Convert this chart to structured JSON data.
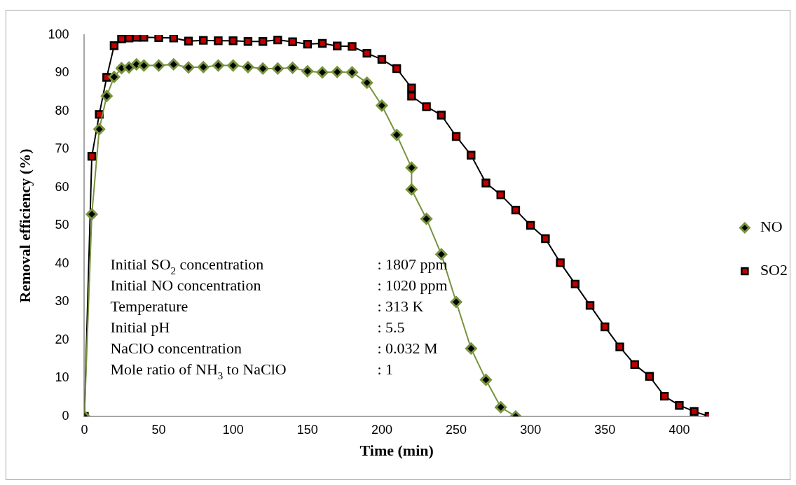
{
  "chart_data": {
    "type": "line",
    "xlabel": "Time (min)",
    "ylabel": "Removal efficiency (%)",
    "xlim": [
      0,
      420
    ],
    "xticks": [
      0,
      50,
      100,
      150,
      200,
      250,
      300,
      350,
      400
    ],
    "ylim": [
      0,
      100
    ],
    "yticks": [
      0,
      10,
      20,
      30,
      40,
      50,
      60,
      70,
      80,
      90,
      100
    ],
    "grid": false,
    "legend": "right",
    "line_style": "solid",
    "series": [
      {
        "name": "NO",
        "color": "#77933c",
        "marker": "diamond",
        "x": [
          0,
          5,
          10,
          15,
          20,
          25,
          30,
          35,
          40,
          50,
          60,
          70,
          80,
          90,
          100,
          110,
          120,
          130,
          140,
          150,
          160,
          170,
          180,
          190,
          200,
          210,
          220,
          220,
          230,
          240,
          250,
          260,
          270,
          280,
          290
        ],
        "values": [
          0,
          53,
          75.3,
          84,
          89,
          91.3,
          91.5,
          92.3,
          92,
          92,
          92.3,
          91.5,
          91.6,
          92,
          92,
          91.6,
          91.2,
          91.2,
          91.4,
          90.5,
          90.2,
          90.3,
          90.2,
          87.5,
          81.5,
          73.8,
          65.2,
          59.5,
          51.8,
          42.5,
          30,
          17.8,
          9.6,
          2.4,
          0
        ]
      },
      {
        "name": "SO2",
        "color": "#c00000",
        "marker": "square",
        "x": [
          0,
          5,
          10,
          15,
          20,
          25,
          30,
          35,
          40,
          50,
          60,
          70,
          80,
          90,
          100,
          110,
          120,
          130,
          140,
          150,
          160,
          170,
          180,
          190,
          200,
          210,
          220,
          220,
          230,
          240,
          250,
          260,
          270,
          280,
          290,
          300,
          310,
          320,
          330,
          340,
          350,
          360,
          370,
          380,
          390,
          400,
          410,
          420
        ],
        "values": [
          0,
          68.2,
          79.2,
          88.9,
          97.2,
          99,
          99.2,
          99.4,
          99.4,
          99.3,
          99.2,
          98.4,
          98.6,
          98.5,
          98.5,
          98.3,
          98.3,
          98.7,
          98.2,
          97.6,
          97.8,
          97.1,
          97,
          95.2,
          93.6,
          91.2,
          86.1,
          84,
          81.2,
          79,
          73.4,
          68.5,
          61.2,
          58.1,
          54.1,
          50.1,
          46.6,
          40.3,
          34.7,
          29.1,
          23.5,
          18.2,
          13.6,
          10.5,
          5.3,
          2.9,
          1.3,
          0
        ]
      }
    ],
    "annotations": [
      "Initial SO$_{2}$ concentration\t: 1807 ppm",
      "Initial NO concentration\t: 1020 ppm",
      "Temperature\t: 313 K",
      "Initial pH\t: 5.5",
      "NaClO concentration\t: 0.032 M",
      "Mole ratio of NH$_{3}$ to NaClO\t: 1"
    ]
  }
}
